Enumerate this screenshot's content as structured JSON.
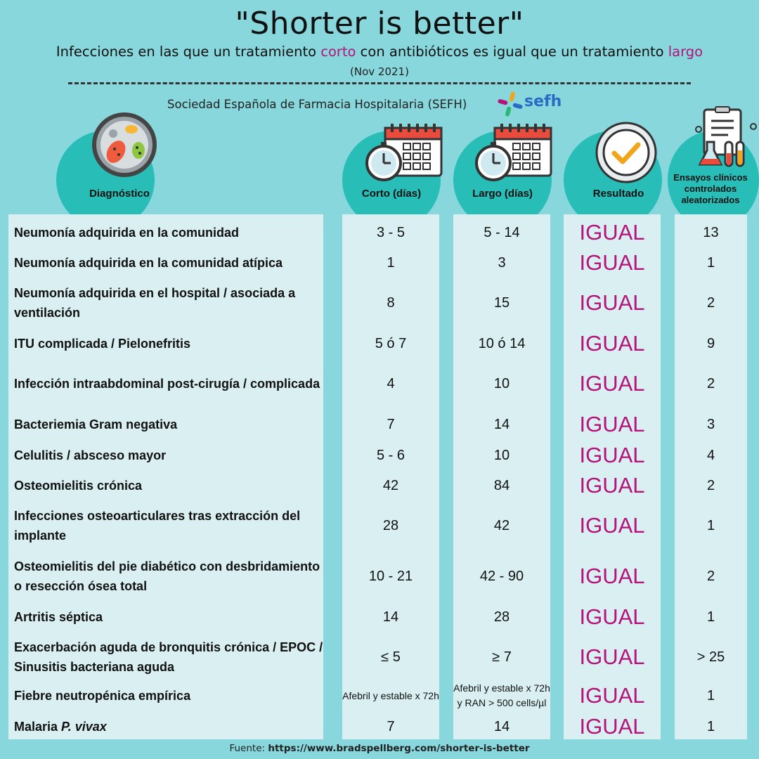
{
  "header": {
    "title": "\"Shorter is better\"",
    "subtitle_pre": "Infecciones en las que un tratamiento ",
    "subtitle_hl1": "corto",
    "subtitle_mid": " con antibióticos es igual que un tratamiento ",
    "subtitle_hl2": "largo",
    "date": "(Nov 2021)",
    "organization": "Sociedad Española de Farmacia Hospitalaria (SEFH)",
    "logo_text": "sefh"
  },
  "colors": {
    "background": "#87d7dc",
    "accent_circle": "#29bdb8",
    "highlight": "#b5127a",
    "panel": "#d9eff1"
  },
  "columns": {
    "diagnostico": "Diagnóstico",
    "corto": "Corto (días)",
    "largo": "Largo (días)",
    "resultado": "Resultado",
    "ensayos": "Ensayos clínicos controlados aleatorizados"
  },
  "icons": [
    "bacteria-petri-dish-icon",
    "stopwatch-calendar-icon",
    "stopwatch-calendar-icon",
    "check-badge-icon",
    "lab-clipboard-icon"
  ],
  "rows": [
    {
      "diag": "Neumonía adquirida en la comunidad",
      "corto": "3 - 5",
      "largo": "5 - 14",
      "resultado": "IGUAL",
      "ensayos": "13"
    },
    {
      "diag": "Neumonía adquirida en la comunidad atípica",
      "corto": "1",
      "largo": "3",
      "resultado": "IGUAL",
      "ensayos": "1"
    },
    {
      "diag": "Neumonía adquirida en el hospital / asociada a ventilación",
      "corto": "8",
      "largo": "15",
      "resultado": "IGUAL",
      "ensayos": "2"
    },
    {
      "diag": "ITU complicada / Pielonefritis",
      "corto": "5 ó 7",
      "largo": "10 ó 14",
      "resultado": "IGUAL",
      "ensayos": "9"
    },
    {
      "diag": "Infección intraabdominal post-cirugía / complicada",
      "corto": "4",
      "largo": "10",
      "resultado": "IGUAL",
      "ensayos": "2"
    },
    {
      "diag": "Bacteriemia Gram negativa",
      "corto": "7",
      "largo": "14",
      "resultado": "IGUAL",
      "ensayos": "3"
    },
    {
      "diag": "Celulitis / absceso mayor",
      "corto": "5 - 6",
      "largo": "10",
      "resultado": "IGUAL",
      "ensayos": "4"
    },
    {
      "diag": "Osteomielitis crónica",
      "corto": "42",
      "largo": "84",
      "resultado": "IGUAL",
      "ensayos": "2"
    },
    {
      "diag": "Infecciones osteoarticulares tras extracción del implante",
      "corto": "28",
      "largo": "42",
      "resultado": "IGUAL",
      "ensayos": "1"
    },
    {
      "diag": "Osteomielitis del pie diabético con desbridamiento o resección ósea total",
      "corto": "10 - 21",
      "largo": "42 - 90",
      "resultado": "IGUAL",
      "ensayos": "2"
    },
    {
      "diag": "Artritis séptica",
      "corto": "14",
      "largo": "28",
      "resultado": "IGUAL",
      "ensayos": "1"
    },
    {
      "diag": "Exacerbación aguda de bronquitis crónica / EPOC / Sinusitis bacteriana aguda",
      "corto": "≤ 5",
      "largo": "≥ 7",
      "resultado": "IGUAL",
      "ensayos": "> 25"
    },
    {
      "diag": "Fiebre neutropénica empírica",
      "corto": "Afebril y estable x 72h",
      "largo": "Afebril y estable x 72h y RAN > 500 cells/µl",
      "resultado": "IGUAL",
      "ensayos": "1"
    },
    {
      "diag_pre": "Malaria ",
      "diag_it": "P. vivax",
      "corto": "7",
      "largo": "14",
      "resultado": "IGUAL",
      "ensayos": "1"
    }
  ],
  "footer": {
    "label": "Fuente: ",
    "url": "https://www.bradspellberg.com/shorter-is-better"
  }
}
